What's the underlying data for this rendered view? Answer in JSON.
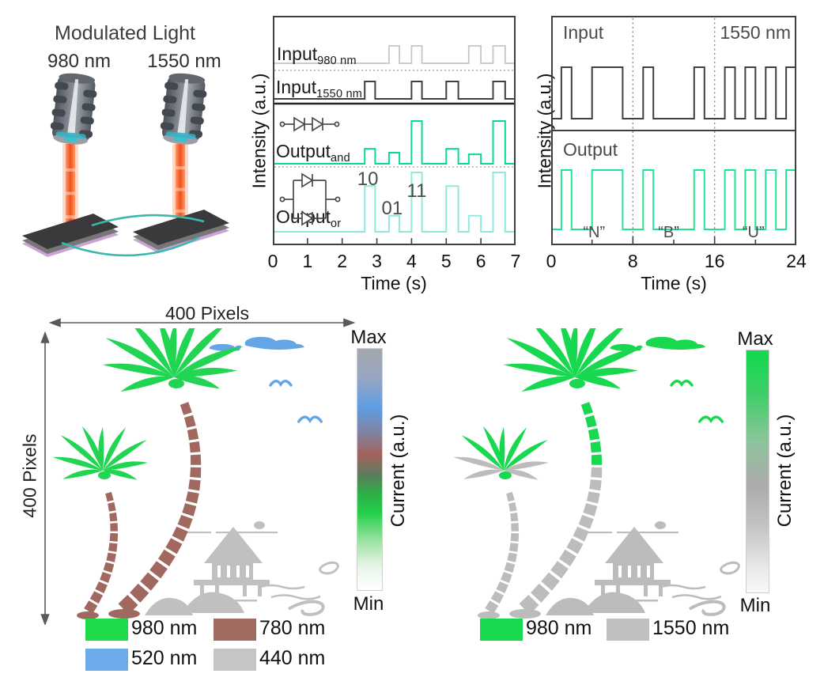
{
  "illustration": {
    "title": "Modulated Light",
    "laser_labels": [
      "980 nm",
      "1550 nm"
    ],
    "beam_color": "#ee4f1e",
    "substrate_color": "#3a3a3d",
    "wire_color": "#3ab8ae"
  },
  "chart_data": [
    {
      "type": "line",
      "name": "optoelectronic-logic-gate-waveforms",
      "xlabel": "Time (s)",
      "ylabel": "Intensity (a.u.)",
      "xlim": [
        0,
        7
      ],
      "xticks": [
        "0",
        "1",
        "2",
        "3",
        "4",
        "5",
        "6",
        "7"
      ],
      "gridlines": false,
      "series": [
        {
          "name": "Input",
          "sub": "980 nm",
          "color": "#c6c6c6",
          "label_color": "#7d7d7d",
          "pulses": [
            [
              3.35,
              3.65
            ],
            [
              4.0,
              4.3
            ],
            [
              5.65,
              6.0
            ],
            [
              6.35,
              6.7
            ]
          ]
        },
        {
          "name": "Input",
          "sub": "1550 nm",
          "color": "#3f3f3f",
          "label_color": "#474747",
          "pulses": [
            [
              2.65,
              2.95
            ],
            [
              4.0,
              4.3
            ],
            [
              5.0,
              5.35
            ],
            [
              6.35,
              6.7
            ]
          ]
        },
        {
          "name": "Output",
          "sub": "and",
          "color": "#07dc8e",
          "label_color": "#555555",
          "pulses": [
            [
              2.65,
              2.95,
              0.35
            ],
            [
              3.35,
              3.65,
              0.26
            ],
            [
              4.0,
              4.3,
              1
            ],
            [
              5.0,
              5.35,
              0.35
            ],
            [
              5.65,
              6.0,
              0.22
            ],
            [
              6.35,
              6.7,
              1
            ]
          ]
        },
        {
          "name": "Output",
          "sub": "or",
          "color": "#8fe9dc",
          "label_color": "#555555",
          "pulses": [
            [
              2.65,
              2.95,
              0.77
            ],
            [
              3.35,
              3.65,
              0.27
            ],
            [
              4.0,
              4.3,
              1
            ],
            [
              5.0,
              5.35,
              0.77
            ],
            [
              5.65,
              6.0,
              0.27
            ],
            [
              6.35,
              6.7,
              1
            ]
          ]
        }
      ],
      "annotations": [
        {
          "text": "10",
          "t": 2.74
        },
        {
          "text": "01",
          "t": 3.44
        },
        {
          "text": "11",
          "t": 4.15
        }
      ]
    },
    {
      "type": "line",
      "name": "ascii-letter-transmission",
      "xlabel": "Time (s)",
      "ylabel": "Intensity (a.u.)",
      "xlim": [
        0,
        24
      ],
      "xticks": [
        "0",
        "8",
        "16",
        "24"
      ],
      "input_label": "Input",
      "output_label": "Output",
      "wavelength": "1550 nm",
      "dotted_time_markers": [
        8,
        16
      ],
      "letters": [
        {
          "text": "“N”",
          "t": 4.2
        },
        {
          "text": "“B”",
          "t": 11.5
        },
        {
          "text": "“U”",
          "t": 19.8
        }
      ],
      "series": [
        {
          "name": "Input",
          "color": "#3f3f3f",
          "pulses": [
            [
              1,
              2
            ],
            [
              4,
              7
            ],
            [
              9,
              10
            ],
            [
              14,
              15
            ],
            [
              17,
              18
            ],
            [
              19,
              20
            ],
            [
              21,
              22
            ],
            [
              23,
              24
            ]
          ]
        },
        {
          "name": "Output",
          "color": "#1ee591",
          "pulses": [
            [
              1,
              2
            ],
            [
              4,
              7
            ],
            [
              9,
              10
            ],
            [
              14,
              15
            ],
            [
              17,
              18
            ],
            [
              19,
              20
            ],
            [
              21,
              22
            ],
            [
              23,
              24
            ]
          ]
        }
      ]
    }
  ],
  "map_left": {
    "width_label": "400 Pixels",
    "height_label": "400 Pixels",
    "colorbar": {
      "max_label": "Max",
      "min_label": "Min",
      "axis_label": "Current (a.u.)",
      "stops": [
        [
          "#a3a7ad",
          0
        ],
        [
          "#97a6c2",
          12
        ],
        [
          "#5e9ee2",
          24
        ],
        [
          "#7e85a5",
          34
        ],
        [
          "#a2635c",
          44
        ],
        [
          "#5d7a5e",
          52
        ],
        [
          "#2fae48",
          60
        ],
        [
          "#23cf4b",
          68
        ],
        [
          "#9fe3a5",
          80
        ],
        [
          "#e6f5e6",
          90
        ],
        [
          "#ffffff",
          100
        ]
      ]
    },
    "legend": [
      {
        "label": "980 nm",
        "color": "#1edb4a"
      },
      {
        "label": "780 nm",
        "color": "#a26b62"
      },
      {
        "label": "520 nm",
        "color": "#6caae9"
      },
      {
        "label": "440 nm",
        "color": "#c7c5c4"
      }
    ],
    "palette": {
      "fronds": "#21d452",
      "trunk": "#a1685f",
      "trunk_top": "#a1685f",
      "small_fronds_lower": "#21d452",
      "sky": "#64a5e6",
      "landmark": "#c2c0bf"
    }
  },
  "map_right": {
    "colorbar": {
      "max_label": "Max",
      "min_label": "Min",
      "axis_label": "Current (a.u.)",
      "stops": [
        [
          "#12d84f",
          0
        ],
        [
          "#3ecf68",
          18
        ],
        [
          "#8ec49b",
          38
        ],
        [
          "#ababab",
          55
        ],
        [
          "#c2c2c2",
          72
        ],
        [
          "#ededed",
          92
        ],
        [
          "#f8f8f8",
          100
        ]
      ]
    },
    "legend": [
      {
        "label": "980 nm",
        "color": "#17d84e"
      },
      {
        "label": "1550 nm",
        "color": "#bfbfbf"
      }
    ],
    "palette": {
      "fronds": "#17d84e",
      "trunk": "#bdbcbb",
      "trunk_top": "#17d84e",
      "small_fronds_lower": "#bdbcbb",
      "sky": "#17d84e",
      "landmark": "#bdbcbb"
    }
  }
}
